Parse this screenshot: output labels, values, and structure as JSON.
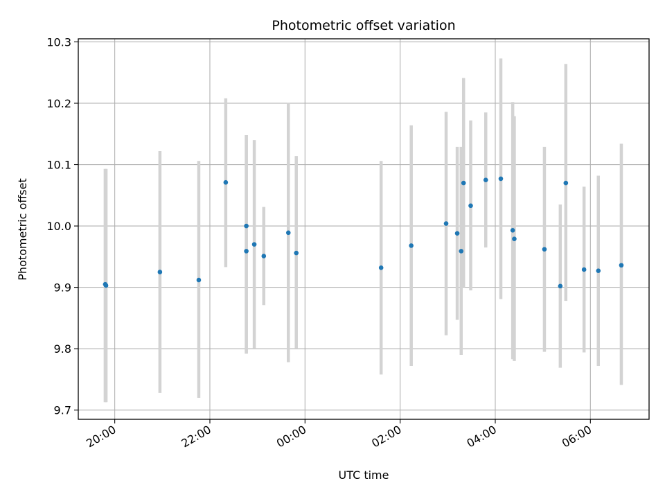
{
  "chart_data": {
    "type": "scatter",
    "title": "Photometric offset variation",
    "xlabel": "UTC time",
    "ylabel": "Photometric offset",
    "xlim": [
      "19:14",
      "07:14"
    ],
    "ylim": [
      9.685,
      10.305
    ],
    "x_ticks": [
      "20:00",
      "22:00",
      "00:00",
      "02:00",
      "04:00",
      "06:00"
    ],
    "y_ticks": [
      "9.7",
      "9.8",
      "9.9",
      "10.0",
      "10.1",
      "10.2",
      "10.3"
    ],
    "grid": true,
    "marker_color": "#1f77b4",
    "errorbar_color": "#d3d3d3",
    "points": [
      {
        "time": "19:48",
        "value": 9.905,
        "lower": 9.713,
        "upper": 10.093
      },
      {
        "time": "19:49",
        "value": 9.903,
        "lower": 9.713,
        "upper": 10.093
      },
      {
        "time": "20:57",
        "value": 9.925,
        "lower": 9.728,
        "upper": 10.122
      },
      {
        "time": "21:46",
        "value": 9.912,
        "lower": 9.72,
        "upper": 10.106
      },
      {
        "time": "22:20",
        "value": 10.071,
        "lower": 9.933,
        "upper": 10.208
      },
      {
        "time": "22:46",
        "value": 10.0,
        "lower": 9.792,
        "upper": 10.148
      },
      {
        "time": "22:46",
        "value": 9.959,
        "lower": 9.792,
        "upper": 10.148
      },
      {
        "time": "22:56",
        "value": 9.97,
        "lower": 9.8,
        "upper": 10.14
      },
      {
        "time": "23:08",
        "value": 9.951,
        "lower": 9.871,
        "upper": 10.031
      },
      {
        "time": "23:39",
        "value": 9.989,
        "lower": 9.778,
        "upper": 10.201
      },
      {
        "time": "23:49",
        "value": 9.956,
        "lower": 9.8,
        "upper": 10.114
      },
      {
        "time": "01:36",
        "value": 9.932,
        "lower": 9.758,
        "upper": 10.106
      },
      {
        "time": "02:14",
        "value": 9.968,
        "lower": 9.772,
        "upper": 10.164
      },
      {
        "time": "02:58",
        "value": 10.004,
        "lower": 9.822,
        "upper": 10.186
      },
      {
        "time": "03:12",
        "value": 9.988,
        "lower": 9.847,
        "upper": 10.129
      },
      {
        "time": "03:17",
        "value": 9.959,
        "lower": 9.79,
        "upper": 10.129
      },
      {
        "time": "03:20",
        "value": 10.07,
        "lower": 9.9,
        "upper": 10.241
      },
      {
        "time": "03:29",
        "value": 10.033,
        "lower": 9.895,
        "upper": 10.172
      },
      {
        "time": "03:48",
        "value": 10.075,
        "lower": 9.965,
        "upper": 10.185
      },
      {
        "time": "04:07",
        "value": 10.077,
        "lower": 9.881,
        "upper": 10.273
      },
      {
        "time": "04:22",
        "value": 9.993,
        "lower": 9.783,
        "upper": 10.202
      },
      {
        "time": "04:24",
        "value": 9.979,
        "lower": 9.78,
        "upper": 10.179
      },
      {
        "time": "05:02",
        "value": 9.962,
        "lower": 9.795,
        "upper": 10.129
      },
      {
        "time": "05:22",
        "value": 9.902,
        "lower": 9.769,
        "upper": 10.035
      },
      {
        "time": "05:29",
        "value": 10.07,
        "lower": 9.878,
        "upper": 10.264
      },
      {
        "time": "05:52",
        "value": 9.929,
        "lower": 9.794,
        "upper": 10.064
      },
      {
        "time": "06:10",
        "value": 9.927,
        "lower": 9.772,
        "upper": 10.082
      },
      {
        "time": "06:39",
        "value": 9.936,
        "lower": 9.741,
        "upper": 10.134
      }
    ]
  }
}
